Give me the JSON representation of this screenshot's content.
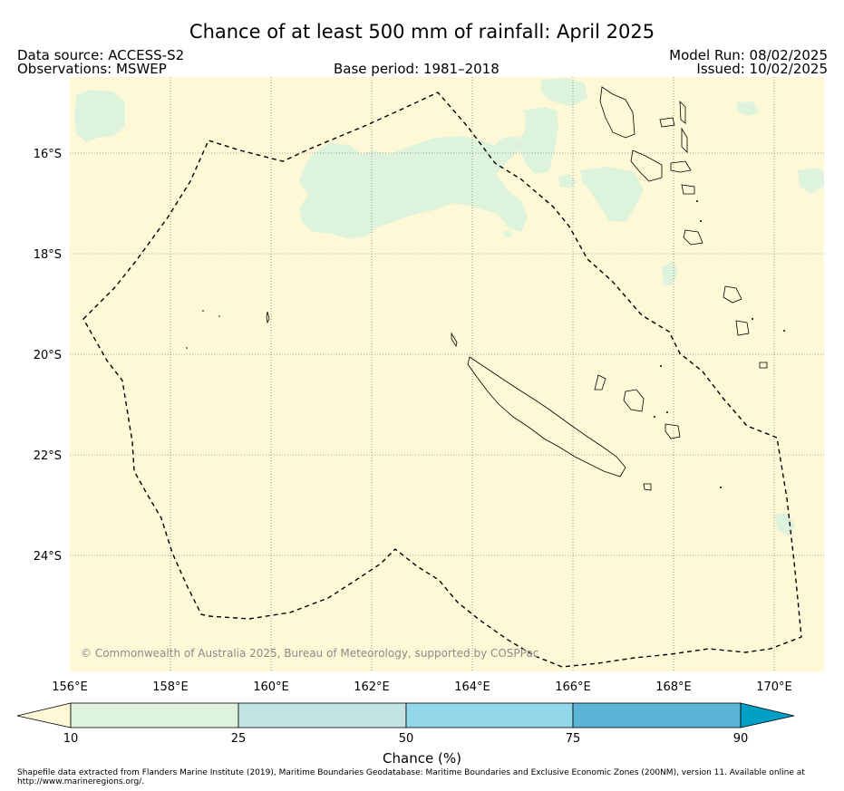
{
  "header": {
    "title": "Chance of at least 500 mm of rainfall: April 2025",
    "data_source": "Data source: ACCESS-S2",
    "observations": "Observations: MSWEP",
    "base_period": "Base period: 1981–2018",
    "model_run": "Model Run: 08/02/2025",
    "issued": "Issued: 10/02/2025"
  },
  "map": {
    "background_color": "#fff8d6",
    "lat_labels": [
      "16°S",
      "18°S",
      "20°S",
      "22°S",
      "24°S"
    ],
    "lon_labels": [
      "156°E",
      "158°E",
      "160°E",
      "162°E",
      "164°E",
      "166°E",
      "168°E",
      "170°E"
    ],
    "copyright": "© Commonwealth of Australia 2025, Bureau of Meteorology, supported by COSPPac",
    "zone_boundary_style": "dashed",
    "gridlines": true
  },
  "colorbar": {
    "label": "Chance (%)",
    "ticks": [
      "10",
      "25",
      "50",
      "75",
      "90"
    ],
    "colors": [
      "#fff8d6",
      "#ddf3dc",
      "#c2e4e4",
      "#92d6ea",
      "#5bb3d6",
      "#009fc6"
    ]
  },
  "footer": "Shapefile data extracted from Flanders Marine Institute (2019), Maritime Boundaries Geodatabase: Maritime Boundaries and Exclusive Economic Zones (200NM), version 11. Available online at http://www.marineregions.org/."
}
